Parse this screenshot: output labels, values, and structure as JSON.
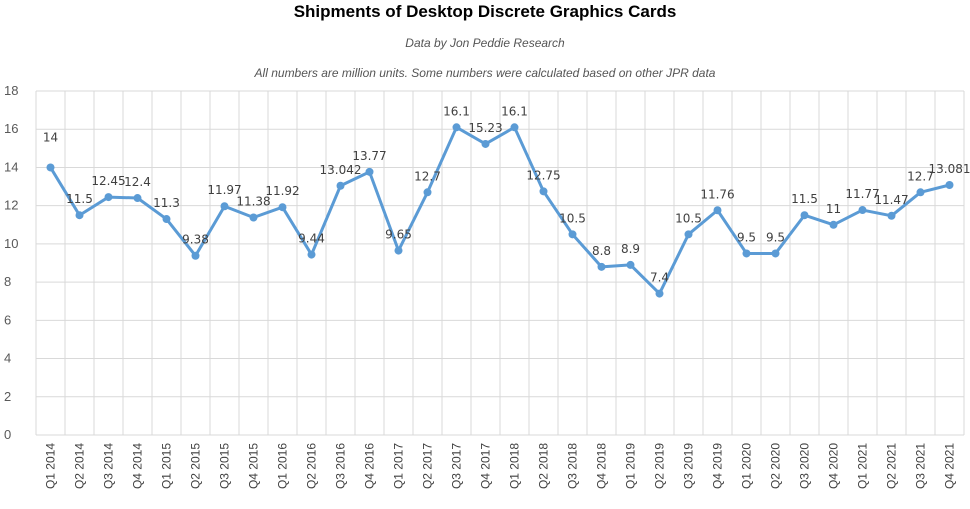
{
  "chart_data": {
    "type": "line",
    "title": "Shipments of Desktop Discrete Graphics Cards",
    "subtitle": "Data by Jon Peddie Research",
    "note": "All numbers are million units. Some numbers were calculated based on other JPR data",
    "xlabel": "",
    "ylabel": "",
    "ylim": [
      0,
      18
    ],
    "yticks": [
      0,
      2,
      4,
      6,
      8,
      10,
      12,
      14,
      16,
      18
    ],
    "grid": true,
    "legend": "none",
    "series_color": "#5b9bd5",
    "categories": [
      "Q1 2014",
      "Q2 2014",
      "Q3 2014",
      "Q4 2014",
      "Q1 2015",
      "Q2 2015",
      "Q3 2015",
      "Q4 2015",
      "Q1 2016",
      "Q2 2016",
      "Q3 2016",
      "Q4 2016",
      "Q1 2017",
      "Q2 2017",
      "Q3 2017",
      "Q4 2017",
      "Q1 2018",
      "Q2 2018",
      "Q3 2018",
      "Q4 2018",
      "Q1 2019",
      "Q2 2019",
      "Q3 2019",
      "Q4 2019",
      "Q1 2020",
      "Q2 2020",
      "Q3 2020",
      "Q4 2020",
      "Q1 2021",
      "Q2 2021",
      "Q3 2021",
      "Q4 2021"
    ],
    "values": [
      14,
      11.5,
      12.45,
      12.4,
      11.3,
      9.38,
      11.97,
      11.38,
      11.92,
      9.44,
      13.042,
      13.77,
      9.65,
      12.7,
      16.1,
      15.23,
      16.1,
      12.75,
      10.5,
      8.8,
      8.9,
      7.4,
      10.5,
      11.76,
      9.5,
      9.5,
      11.5,
      11,
      11.77,
      11.47,
      12.7,
      13.081
    ],
    "data_labels": [
      "14",
      "11.5",
      "12.45",
      "12.4",
      "11.3",
      "9.38",
      "11.97",
      "11.38",
      "11.92",
      "9.44",
      "13.042",
      "13.77",
      "9.65",
      "12.7",
      "16.1",
      "15.23",
      "16.1",
      "12.75",
      "10.5",
      "8.8",
      "8.9",
      "7.4",
      "10.5",
      "11.76",
      "9.5",
      "9.5",
      "11.5",
      "11",
      "11.77",
      "11.47",
      "12.7",
      "13.081"
    ]
  }
}
